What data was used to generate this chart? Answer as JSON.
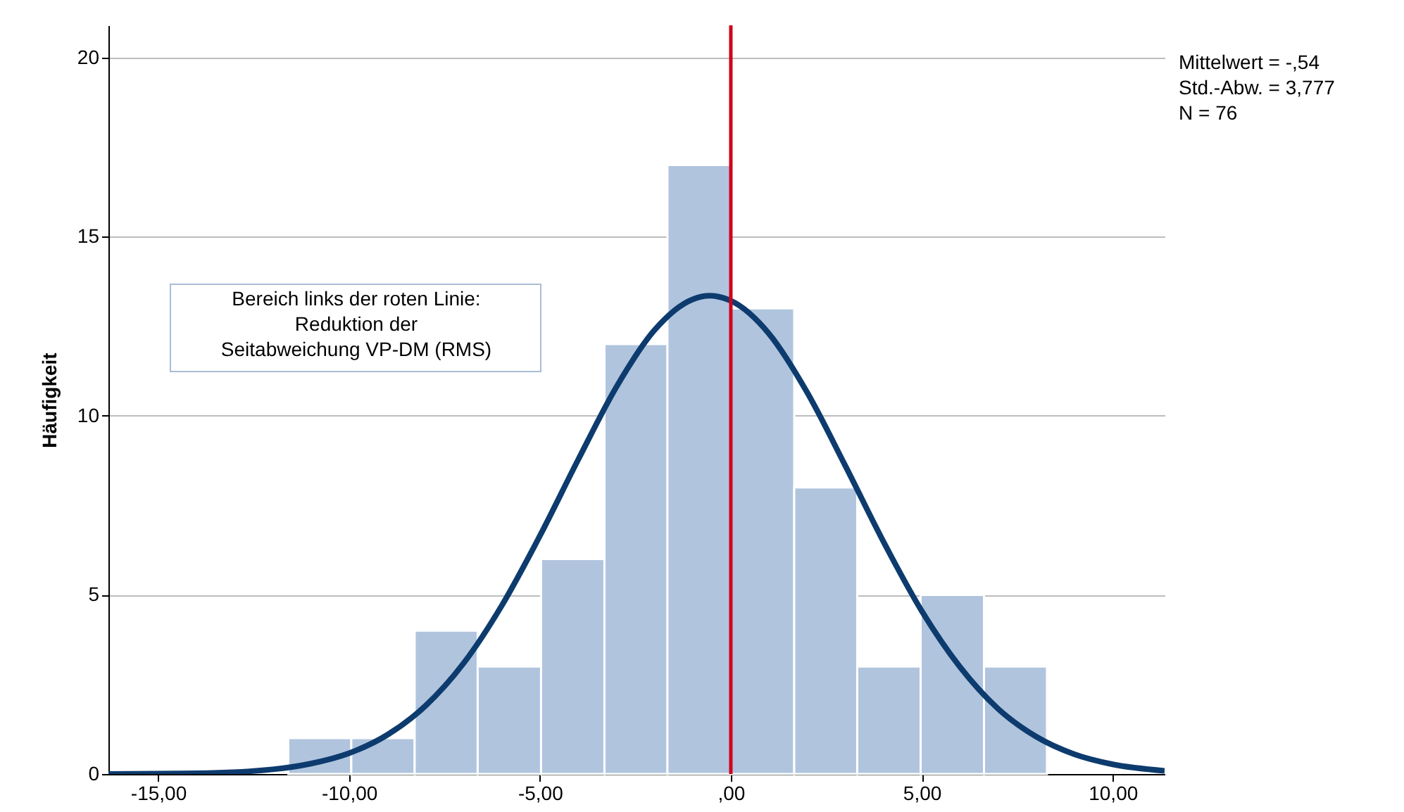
{
  "chart_data": {
    "type": "histogram",
    "ylabel": "Häufigkeit",
    "bins": [
      -11.59,
      -9.94,
      -8.28,
      -6.63,
      -4.97,
      -3.31,
      -1.66,
      0,
      1.66,
      3.31,
      4.97,
      6.63,
      8.28
    ],
    "values": [
      1,
      1,
      4,
      3,
      6,
      12,
      17,
      13,
      8,
      3,
      5,
      3
    ],
    "color": "#b0c4de",
    "series": [
      {
        "type": "line",
        "color": "#0d3b6e",
        "x": [
          -16.3,
          -14,
          -12,
          -11,
          -10,
          -9,
          -8,
          -7,
          -6,
          -5,
          -4,
          -3,
          -2,
          -1,
          -0.54,
          0,
          1,
          2,
          3,
          4,
          5,
          6,
          7,
          8,
          9,
          10,
          11.36
        ],
        "values": [
          0.0,
          0.02,
          0.13,
          0.29,
          0.58,
          1.09,
          1.9,
          3.09,
          4.7,
          6.65,
          8.77,
          10.8,
          12.39,
          13.25,
          13.35,
          13.21,
          12.29,
          10.65,
          8.6,
          6.48,
          4.55,
          2.99,
          1.82,
          1.04,
          0.55,
          0.27,
          0.09
        ]
      }
    ],
    "xlim": [
      -16.3,
      11.36
    ],
    "ylim": [
      0,
      20.9
    ],
    "xticks": [
      {
        "value": -15,
        "label": "-15,00"
      },
      {
        "value": -10,
        "label": "-10,00"
      },
      {
        "value": -5,
        "label": "-5,00"
      },
      {
        "value": 0,
        "label": ",00"
      },
      {
        "value": 5,
        "label": "5,00"
      },
      {
        "value": 10,
        "label": "10,00"
      }
    ],
    "yticks": [
      0,
      5,
      10,
      15,
      20
    ],
    "grid": "y",
    "ref_lines": [
      {
        "axis": "x",
        "value": 0,
        "color": "#d0021b"
      }
    ],
    "annotations": [
      "Mittelwert = -,54",
      "Std.-Abw. = 3,777",
      "N = 76",
      "Bereich links der roten Linie:\nReduktion der\nSeitabweichung VP-DM (RMS)"
    ]
  }
}
